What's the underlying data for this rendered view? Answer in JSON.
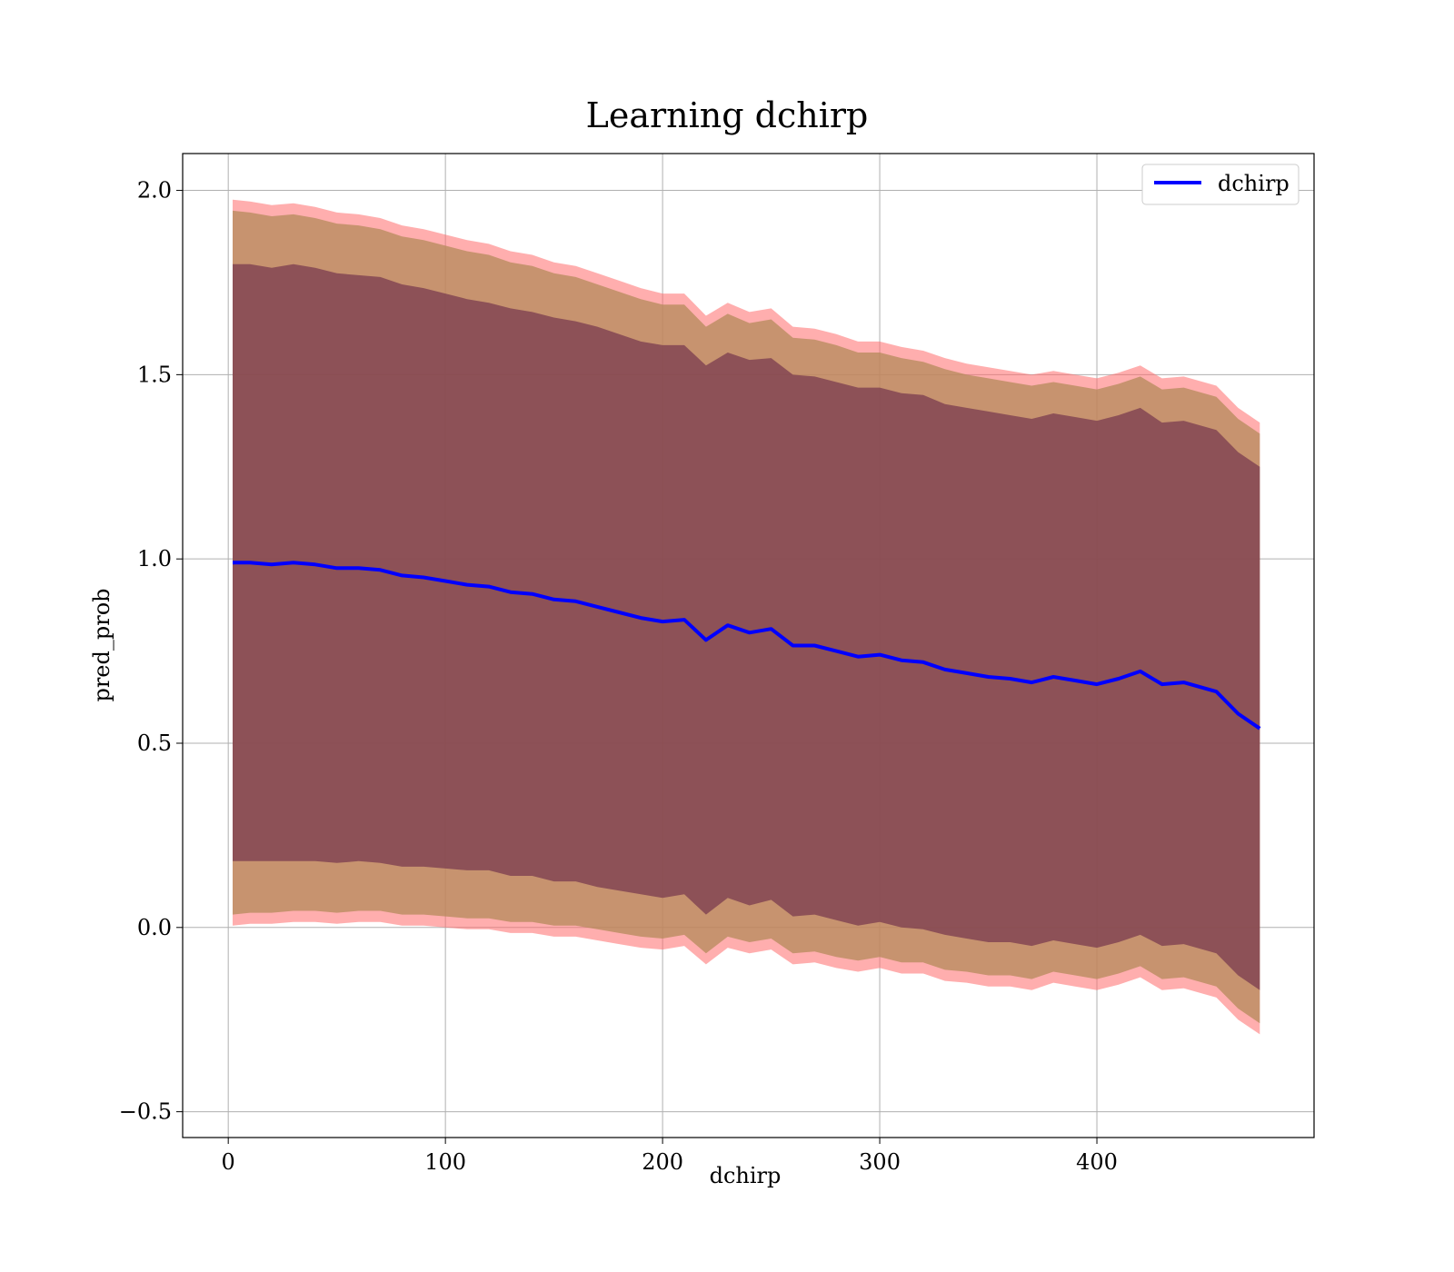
{
  "chart_data": {
    "type": "area",
    "title": "Learning dchirp",
    "xlabel": "dchirp",
    "ylabel": "pred_prob",
    "xlim": [
      -21,
      500
    ],
    "ylim": [
      -0.57,
      2.1
    ],
    "xticks": [
      0,
      100,
      200,
      300,
      400
    ],
    "yticks": [
      -0.5,
      0.0,
      0.5,
      1.0,
      1.5,
      2.0
    ],
    "xtick_labels": [
      "0",
      "100",
      "200",
      "300",
      "400"
    ],
    "ytick_labels": [
      "−0.5",
      "0.0",
      "0.5",
      "1.0",
      "1.5",
      "2.0"
    ],
    "grid": true,
    "legend_position": "top-right",
    "colors": {
      "line": "#0000ff",
      "band_3sd": "#ff6b6b",
      "band_2sd": "#b48a5a",
      "band_1sd": "#7a3b4f"
    },
    "series": [
      {
        "name": "dchirp",
        "x": [
          2,
          10,
          20,
          30,
          40,
          50,
          60,
          70,
          80,
          90,
          100,
          110,
          120,
          130,
          140,
          150,
          160,
          170,
          180,
          190,
          200,
          210,
          220,
          230,
          240,
          250,
          260,
          270,
          280,
          290,
          300,
          310,
          320,
          330,
          340,
          350,
          360,
          370,
          380,
          390,
          400,
          410,
          420,
          430,
          440,
          455,
          465,
          475
        ],
        "y": [
          0.99,
          0.99,
          0.985,
          0.99,
          0.985,
          0.975,
          0.975,
          0.97,
          0.955,
          0.95,
          0.94,
          0.93,
          0.925,
          0.91,
          0.905,
          0.89,
          0.885,
          0.87,
          0.855,
          0.84,
          0.83,
          0.835,
          0.78,
          0.82,
          0.8,
          0.81,
          0.765,
          0.765,
          0.75,
          0.735,
          0.74,
          0.725,
          0.72,
          0.7,
          0.69,
          0.68,
          0.675,
          0.665,
          0.68,
          0.67,
          0.66,
          0.675,
          0.695,
          0.66,
          0.665,
          0.64,
          0.58,
          0.54
        ],
        "band_1sd": [
          0.81,
          0.81,
          0.805,
          0.81,
          0.805,
          0.8,
          0.795,
          0.795,
          0.79,
          0.785,
          0.78,
          0.775,
          0.77,
          0.77,
          0.765,
          0.765,
          0.76,
          0.76,
          0.755,
          0.75,
          0.75,
          0.745,
          0.745,
          0.74,
          0.74,
          0.735,
          0.735,
          0.73,
          0.73,
          0.73,
          0.725,
          0.725,
          0.725,
          0.72,
          0.72,
          0.72,
          0.715,
          0.715,
          0.715,
          0.715,
          0.715,
          0.715,
          0.715,
          0.71,
          0.71,
          0.71,
          0.71,
          0.71
        ],
        "band_2sd": [
          0.955,
          0.95,
          0.945,
          0.945,
          0.94,
          0.935,
          0.93,
          0.925,
          0.92,
          0.915,
          0.91,
          0.905,
          0.9,
          0.895,
          0.89,
          0.885,
          0.88,
          0.875,
          0.87,
          0.865,
          0.86,
          0.855,
          0.85,
          0.845,
          0.84,
          0.84,
          0.835,
          0.83,
          0.83,
          0.825,
          0.82,
          0.82,
          0.815,
          0.815,
          0.81,
          0.81,
          0.805,
          0.805,
          0.8,
          0.8,
          0.8,
          0.8,
          0.8,
          0.8,
          0.8,
          0.8,
          0.8,
          0.8
        ],
        "band_3sd": [
          0.985,
          0.98,
          0.975,
          0.975,
          0.97,
          0.965,
          0.96,
          0.955,
          0.95,
          0.945,
          0.94,
          0.935,
          0.93,
          0.925,
          0.92,
          0.915,
          0.91,
          0.905,
          0.9,
          0.895,
          0.89,
          0.885,
          0.88,
          0.875,
          0.87,
          0.87,
          0.865,
          0.86,
          0.86,
          0.855,
          0.85,
          0.85,
          0.845,
          0.845,
          0.84,
          0.84,
          0.835,
          0.835,
          0.83,
          0.83,
          0.83,
          0.83,
          0.83,
          0.83,
          0.83,
          0.83,
          0.83,
          0.83
        ]
      }
    ]
  }
}
